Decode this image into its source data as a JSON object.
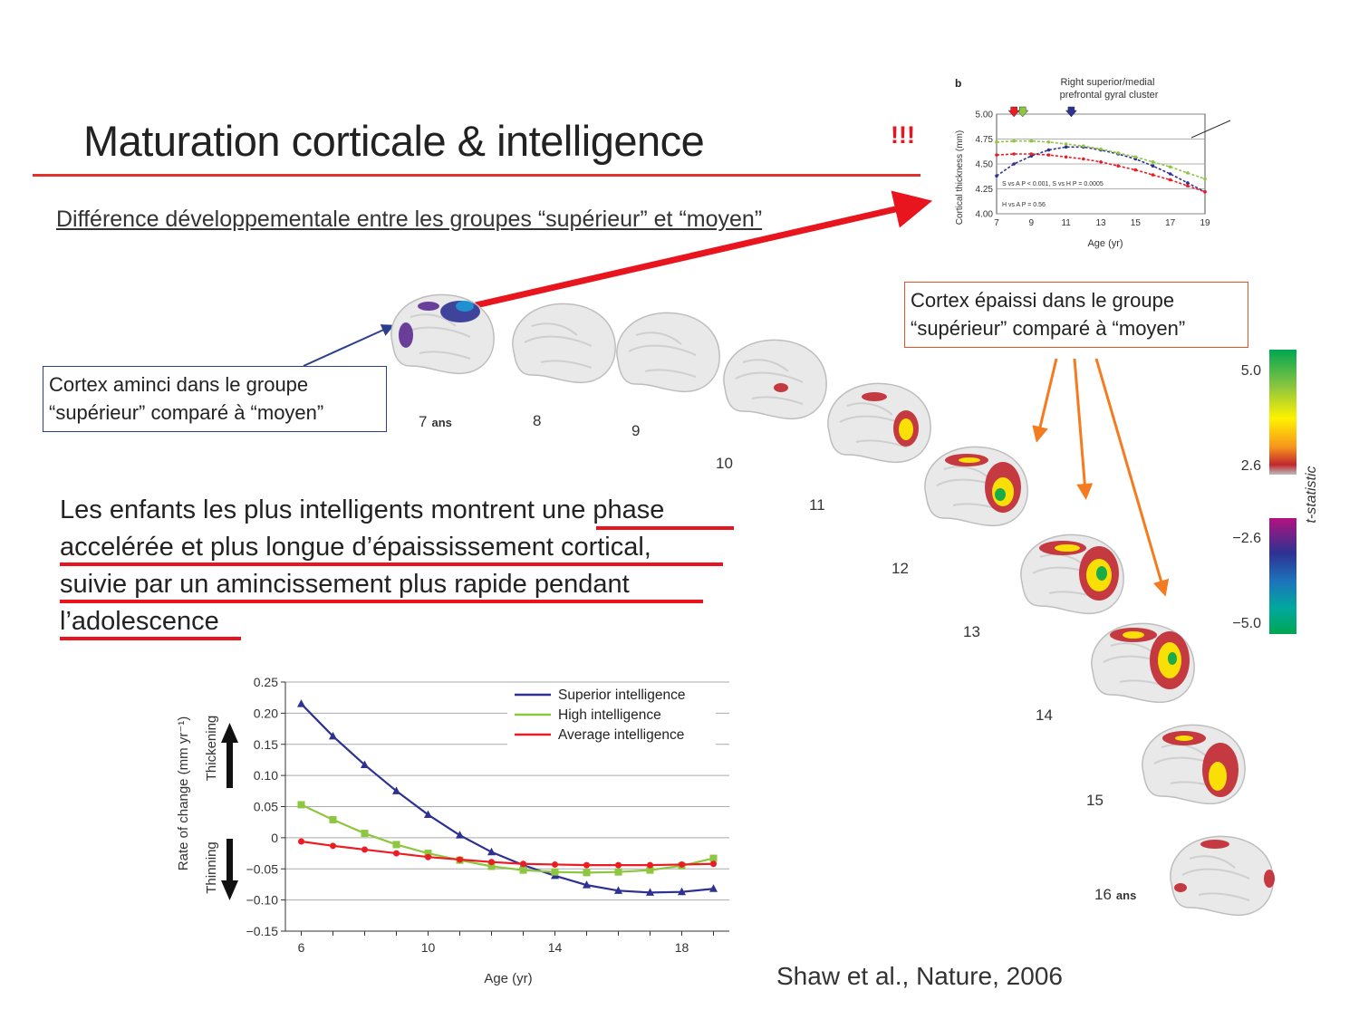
{
  "slide": {
    "title": "Maturation corticale & intelligence",
    "exclaim": "!!!",
    "subtitle": "Différence développementale entre les groupes “supérieur” et “moyen”",
    "callout_thin": [
      "Cortex aminci dans le groupe",
      "“supérieur” comparé à “moyen”"
    ],
    "callout_thick": [
      "Cortex épaissi dans le groupe",
      "“supérieur” comparé à “moyen”"
    ],
    "conclusion_lines": [
      "Les enfants les plus intelligents montrent une phase",
      "accelérée et plus longue d’épaississement cortical,",
      "suivie par un amincissement plus rapide pendant",
      "l’adolescence"
    ],
    "citation": "Shaw et al., Nature, 2006"
  },
  "brain_series": {
    "ages": [
      {
        "label": "7",
        "suffix": "ans"
      },
      {
        "label": "8",
        "suffix": ""
      },
      {
        "label": "9",
        "suffix": ""
      },
      {
        "label": "10",
        "suffix": ""
      },
      {
        "label": "11",
        "suffix": ""
      },
      {
        "label": "12",
        "suffix": ""
      },
      {
        "label": "13",
        "suffix": ""
      },
      {
        "label": "14",
        "suffix": ""
      },
      {
        "label": "15",
        "suffix": ""
      },
      {
        "label": "16",
        "suffix": "ans"
      }
    ],
    "colorbar": {
      "axis_label": "t-statistic",
      "ticks": [
        "5.0",
        "2.6",
        "−2.6",
        "−5.0"
      ]
    }
  },
  "chart_data": [
    {
      "type": "line",
      "panel_label": "b",
      "title": "Right superior/medial prefrontal gyral cluster",
      "xlabel": "Age (yr)",
      "ylabel": "Cortical thickness (mm)",
      "xlim": [
        7,
        19
      ],
      "ylim": [
        4.0,
        5.0
      ],
      "x_ticks": [
        7,
        9,
        11,
        13,
        15,
        17,
        19
      ],
      "y_ticks": [
        "4.00",
        "4.25",
        "4.50",
        "4.75",
        "5.00"
      ],
      "annotations": [
        "S vs A P < 0.001, S vs H P = 0.0005",
        "H vs A P = 0.56"
      ],
      "series": [
        {
          "color": "#2e3192",
          "x": [
            7,
            8,
            9,
            10,
            11,
            12,
            13,
            14,
            15,
            16,
            17,
            18,
            19
          ],
          "y": [
            4.38,
            4.5,
            4.58,
            4.64,
            4.67,
            4.67,
            4.64,
            4.6,
            4.55,
            4.48,
            4.4,
            4.31,
            4.22
          ],
          "peak_x": 11.3
        },
        {
          "color": "#8dc63f",
          "x": [
            7,
            8,
            9,
            10,
            11,
            12,
            13,
            14,
            15,
            16,
            17,
            18,
            19
          ],
          "y": [
            4.72,
            4.73,
            4.73,
            4.72,
            4.7,
            4.68,
            4.65,
            4.61,
            4.57,
            4.52,
            4.47,
            4.41,
            4.35
          ],
          "peak_x": 8.5
        },
        {
          "color": "#ed1c24",
          "x": [
            7,
            8,
            9,
            10,
            11,
            12,
            13,
            14,
            15,
            16,
            17,
            18,
            19
          ],
          "y": [
            4.59,
            4.6,
            4.6,
            4.59,
            4.57,
            4.55,
            4.52,
            4.48,
            4.44,
            4.39,
            4.34,
            4.28,
            4.22
          ],
          "peak_x": 8.0
        }
      ]
    },
    {
      "type": "line",
      "title": "",
      "xlabel": "Age (yr)",
      "ylabel": "Rate of change (mm yr⁻¹)",
      "side_labels": [
        "Thickening",
        "Thinning"
      ],
      "xlim": [
        5.5,
        19.5
      ],
      "ylim": [
        -0.15,
        0.25
      ],
      "x_ticks": [
        6,
        10,
        14,
        18
      ],
      "y_ticks": [
        {
          "v": 0.25,
          "label": "0.25"
        },
        {
          "v": 0.2,
          "label": "0.20"
        },
        {
          "v": 0.15,
          "label": "0.15"
        },
        {
          "v": 0.1,
          "label": "0.10"
        },
        {
          "v": 0.05,
          "label": "0.05"
        },
        {
          "v": 0,
          "label": "0"
        },
        {
          "v": -0.05,
          "label": "−0.05"
        },
        {
          "v": -0.1,
          "label": "−0.10"
        },
        {
          "v": -0.15,
          "label": "−0.15"
        }
      ],
      "legend_position": "top-right",
      "x": [
        6,
        7,
        8,
        9,
        10,
        11,
        12,
        13,
        14,
        15,
        16,
        17,
        18,
        19
      ],
      "series": [
        {
          "name": "Superior intelligence",
          "color": "#2e3192",
          "marker": "triangle",
          "values": [
            0.215,
            0.163,
            0.117,
            0.075,
            0.037,
            0.004,
            -0.023,
            -0.044,
            -0.061,
            -0.076,
            -0.085,
            -0.088,
            -0.087,
            -0.082
          ]
        },
        {
          "name": "High intelligence",
          "color": "#8dc63f",
          "marker": "square",
          "values": [
            0.053,
            0.029,
            0.007,
            -0.011,
            -0.025,
            -0.036,
            -0.046,
            -0.052,
            -0.055,
            -0.056,
            -0.055,
            -0.052,
            -0.045,
            -0.033
          ]
        },
        {
          "name": "Average intelligence",
          "color": "#ed1c24",
          "marker": "circle",
          "values": [
            -0.006,
            -0.013,
            -0.019,
            -0.025,
            -0.031,
            -0.035,
            -0.039,
            -0.042,
            -0.043,
            -0.044,
            -0.044,
            -0.044,
            -0.043,
            -0.042
          ]
        }
      ]
    }
  ],
  "colors": {
    "title_rule": "#e0322a",
    "arrow_red": "#e8141e",
    "arrow_orange": "#f47b20",
    "callout_blue": "#2c3f8f"
  }
}
